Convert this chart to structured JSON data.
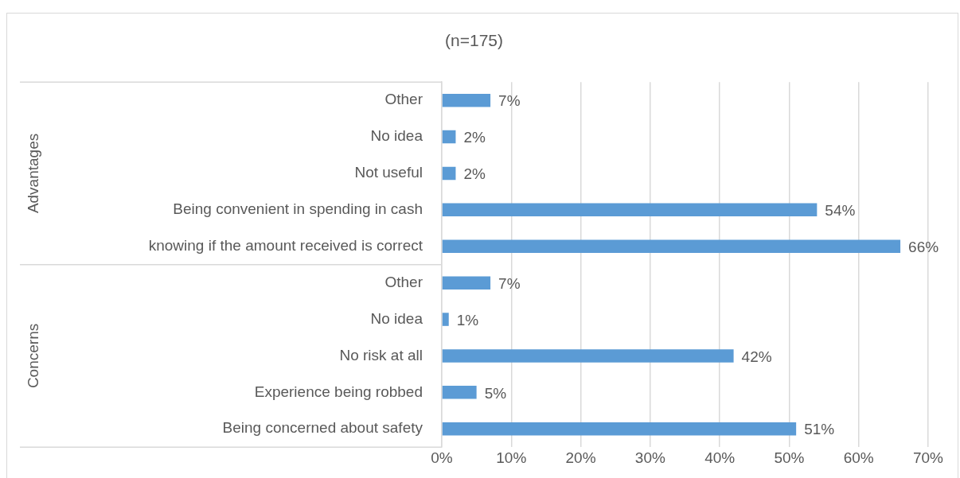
{
  "chart_data": {
    "type": "bar",
    "orientation": "horizontal",
    "title": "(n=175)",
    "categories": [
      "Other",
      "No idea",
      "Not useful",
      "Being convenient in spending in cash",
      "knowing if the amount received is correct",
      "Other",
      "No idea",
      "No risk at all",
      "Experience being robbed",
      "Being concerned about safety"
    ],
    "values": [
      7,
      2,
      2,
      54,
      66,
      7,
      1,
      42,
      5,
      51
    ],
    "value_labels": [
      "7%",
      "2%",
      "2%",
      "54%",
      "66%",
      "7%",
      "1%",
      "42%",
      "5%",
      "51%"
    ],
    "color": "#5b9bd5",
    "xlim": [
      0,
      70
    ],
    "xticks": [
      {
        "value": 0,
        "label": "0%"
      },
      {
        "value": 10,
        "label": "10%"
      },
      {
        "value": 20,
        "label": "20%"
      },
      {
        "value": 30,
        "label": "30%"
      },
      {
        "value": 40,
        "label": "40%"
      },
      {
        "value": 50,
        "label": "50%"
      },
      {
        "value": 60,
        "label": "60%"
      },
      {
        "value": 70,
        "label": "70%"
      }
    ],
    "grid": "x",
    "annotations": [
      "Advantages",
      "Concerns"
    ]
  }
}
